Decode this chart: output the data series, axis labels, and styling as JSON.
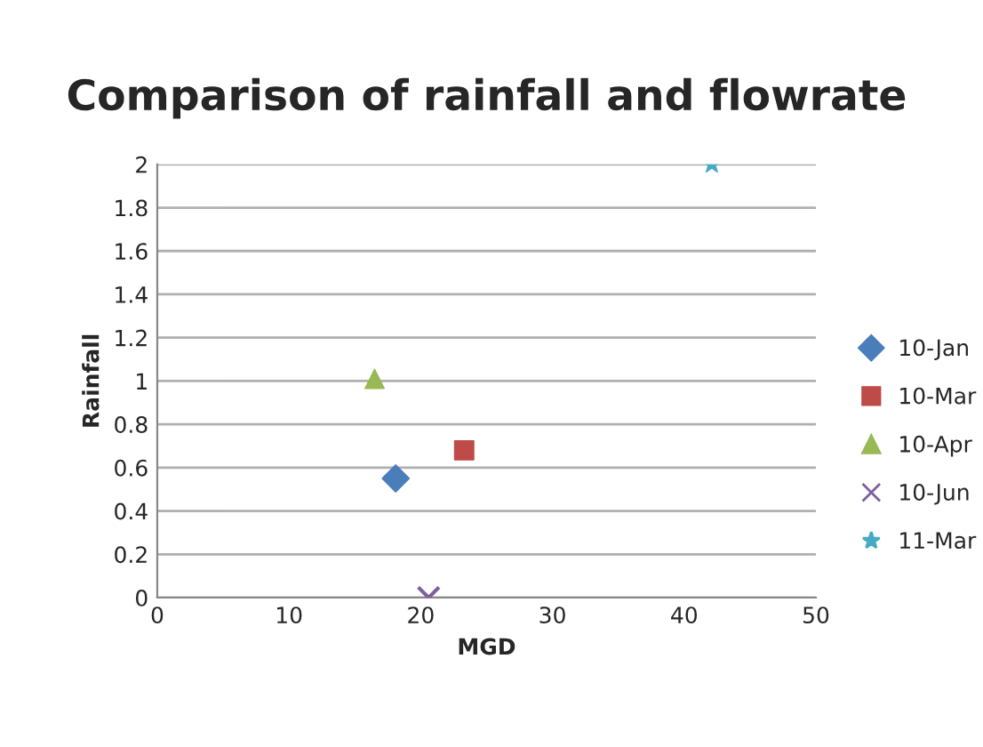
{
  "chart_data": {
    "type": "scatter",
    "title": "Comparison of rainfall and flowrate",
    "xlabel": "MGD",
    "ylabel": "Rainfall",
    "xlim": [
      0,
      50
    ],
    "xticks": [
      0,
      10,
      20,
      30,
      40,
      50
    ],
    "ylim": [
      0,
      2
    ],
    "yticks": [
      0,
      {
        "value": 0.2,
        "label": "0.2"
      },
      {
        "value": 0.4,
        "label": "0.4"
      },
      {
        "value": 0.6,
        "label": "0.6"
      },
      {
        "value": 0.8,
        "label": "0.8"
      },
      1,
      {
        "value": 1.2,
        "label": "1.2"
      },
      {
        "value": 1.4,
        "label": "1.4"
      },
      {
        "value": 1.6,
        "label": "1.6"
      },
      {
        "value": 1.8,
        "label": "1.8"
      },
      2
    ],
    "grid": "y",
    "legend": "right",
    "series": [
      {
        "name": "10-Jan",
        "color": "#4a7ebb",
        "marker": "diamond",
        "x": [
          18.1
        ],
        "values": [
          0.55
        ]
      },
      {
        "name": "10-Mar",
        "color": "#be4b48",
        "marker": "square",
        "x": [
          23.3
        ],
        "values": [
          0.68
        ]
      },
      {
        "name": "10-Apr",
        "color": "#98b954",
        "marker": "triangle",
        "x": [
          16.5
        ],
        "values": [
          1.01
        ]
      },
      {
        "name": "10-Jun",
        "color": "#7d60a0",
        "marker": "cross",
        "x": [
          20.6
        ],
        "values": [
          0
        ]
      },
      {
        "name": "11-Mar",
        "color": "#46aac5",
        "marker": "star",
        "x": [
          42.1
        ],
        "values": [
          2
        ]
      }
    ]
  }
}
